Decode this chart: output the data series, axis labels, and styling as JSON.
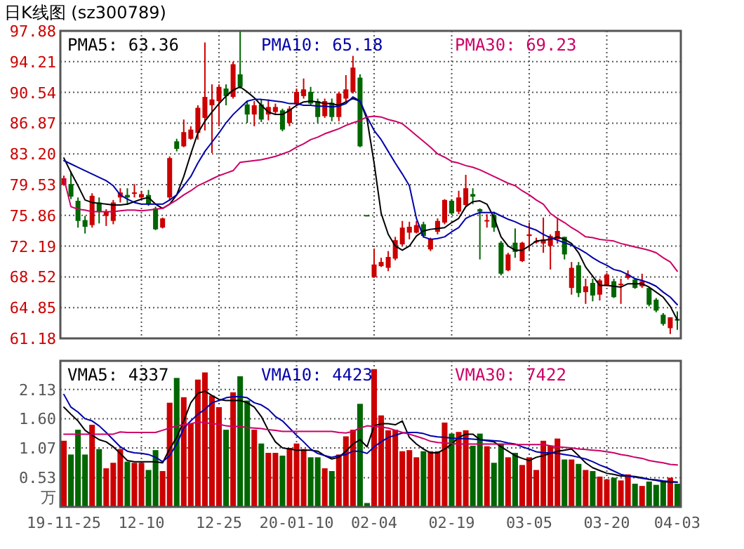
{
  "chart_data": [
    {
      "type": "candlestick",
      "title": "日K线图 (sz300789)",
      "categories": [
        null,
        null,
        null,
        null,
        null,
        null,
        null,
        null,
        null,
        null,
        null,
        null,
        null,
        null,
        null,
        null,
        null,
        null,
        null,
        null,
        null,
        null,
        null,
        null,
        null,
        null,
        null,
        null,
        null,
        null,
        null,
        null,
        null,
        null,
        null,
        null,
        null,
        null,
        null,
        null,
        null,
        null,
        null,
        null,
        null,
        null,
        null,
        null,
        null,
        null,
        null,
        null,
        null,
        null,
        null,
        null,
        null,
        null,
        null,
        null,
        null,
        null,
        null,
        null,
        null,
        null,
        null,
        null,
        null,
        null,
        null,
        null,
        null,
        null,
        null,
        null,
        null,
        null,
        null,
        null,
        null,
        null,
        null,
        null,
        null,
        null,
        null,
        null
      ],
      "ohlc": [
        [
          79.5,
          80.6,
          79.4,
          80.3
        ],
        [
          79.6,
          81.1,
          77.8,
          78.1
        ],
        [
          77.6,
          78.0,
          74.4,
          75.2
        ],
        [
          75.3,
          75.8,
          73.7,
          74.5
        ],
        [
          74.7,
          78.5,
          74.4,
          78.2
        ],
        [
          77.4,
          78.0,
          74.9,
          76.3
        ],
        [
          75.8,
          76.6,
          74.6,
          76.3
        ],
        [
          75.2,
          77.7,
          74.8,
          77.4
        ],
        [
          78.0,
          79.1,
          77.4,
          78.6
        ],
        [
          78.3,
          79.1,
          77.1,
          78.0
        ],
        [
          78.5,
          79.6,
          78.0,
          78.6
        ],
        [
          78.0,
          78.8,
          77.7,
          78.4
        ],
        [
          78.3,
          78.9,
          77.0,
          77.2
        ],
        [
          76.7,
          76.9,
          74.1,
          74.2
        ],
        [
          74.4,
          75.6,
          74.3,
          75.5
        ],
        [
          78.0,
          82.9,
          77.6,
          82.7
        ],
        [
          84.7,
          85.0,
          83.5,
          83.8
        ],
        [
          84.1,
          87.3,
          84.0,
          85.8
        ],
        [
          85.0,
          86.5,
          84.9,
          86.1
        ],
        [
          85.7,
          89.0,
          84.9,
          88.7
        ],
        [
          87.5,
          96.5,
          86.0,
          90.0
        ],
        [
          89.0,
          91.5,
          83.3,
          89.7
        ],
        [
          89.5,
          91.5,
          86.5,
          91.2
        ],
        [
          91.0,
          91.5,
          89.0,
          90.1
        ],
        [
          90.0,
          94.2,
          89.8,
          93.9
        ],
        [
          92.7,
          97.88,
          91.0,
          91.2
        ],
        [
          89.1,
          89.5,
          86.9,
          87.9
        ],
        [
          87.9,
          89.5,
          86.5,
          89.0
        ],
        [
          89.1,
          89.7,
          87.0,
          87.3
        ],
        [
          87.9,
          89.7,
          87.2,
          88.8
        ],
        [
          88.2,
          89.2,
          87.9,
          88.8
        ],
        [
          88.4,
          88.6,
          85.9,
          86.1
        ],
        [
          86.9,
          88.9,
          86.5,
          88.6
        ],
        [
          89.1,
          91.0,
          88.9,
          90.6
        ],
        [
          90.1,
          92.2,
          89.8,
          90.9
        ],
        [
          90.6,
          91.2,
          89.0,
          89.2
        ],
        [
          89.5,
          89.8,
          86.9,
          87.6
        ],
        [
          87.7,
          89.8,
          87.5,
          89.5
        ],
        [
          89.3,
          89.8,
          87.1,
          87.6
        ],
        [
          87.6,
          90.6,
          87.1,
          90.4
        ],
        [
          89.8,
          92.6,
          89.5,
          90.9
        ],
        [
          90.6,
          94.9,
          90.4,
          93.5
        ],
        [
          92.3,
          92.7,
          84.0,
          84.1
        ],
        [
          75.9,
          75.9,
          75.9,
          75.9
        ],
        [
          68.5,
          71.9,
          68.4,
          70.0
        ],
        [
          69.8,
          70.8,
          69.7,
          70.3
        ],
        [
          69.6,
          71.6,
          69.2,
          70.9
        ],
        [
          70.7,
          73.3,
          70.5,
          72.9
        ],
        [
          72.4,
          75.2,
          72.2,
          74.4
        ],
        [
          73.8,
          75.1,
          73.0,
          74.5
        ],
        [
          73.8,
          75.2,
          73.7,
          74.7
        ],
        [
          74.8,
          75.1,
          73.2,
          73.4
        ],
        [
          71.8,
          73.2,
          71.6,
          73.0
        ],
        [
          73.9,
          75.5,
          73.6,
          75.2
        ],
        [
          75.0,
          77.8,
          74.8,
          77.7
        ],
        [
          77.6,
          77.8,
          75.9,
          76.1
        ],
        [
          76.3,
          78.8,
          76.0,
          78.0
        ],
        [
          77.1,
          80.7,
          77.0,
          79.1
        ],
        [
          78.4,
          79.1,
          77.2,
          78.1
        ],
        [
          76.6,
          76.7,
          70.6,
          76.3
        ],
        [
          75.2,
          76.0,
          74.4,
          75.3
        ],
        [
          75.9,
          76.3,
          73.9,
          74.4
        ],
        [
          72.6,
          72.8,
          68.7,
          68.9
        ],
        [
          69.3,
          71.4,
          69.2,
          71.2
        ],
        [
          72.6,
          74.3,
          70.8,
          71.5
        ],
        [
          70.4,
          72.7,
          70.3,
          72.6
        ],
        [
          73.4,
          75.0,
          71.7,
          73.6
        ],
        [
          72.7,
          73.2,
          72.5,
          72.8
        ],
        [
          72.5,
          75.6,
          71.4,
          73.0
        ],
        [
          72.2,
          73.6,
          69.4,
          73.4
        ],
        [
          73.0,
          75.6,
          72.5,
          74.0
        ],
        [
          73.3,
          73.3,
          70.6,
          71.2
        ],
        [
          67.2,
          70.3,
          66.4,
          69.6
        ],
        [
          69.9,
          70.3,
          66.1,
          66.6
        ],
        [
          66.7,
          68.3,
          65.3,
          67.4
        ],
        [
          67.8,
          68.3,
          65.6,
          66.3
        ],
        [
          66.4,
          68.3,
          65.7,
          68.1
        ],
        [
          67.5,
          69.0,
          67.4,
          68.8
        ],
        [
          68.0,
          68.3,
          66.0,
          66.1
        ],
        [
          67.6,
          68.3,
          65.3,
          67.7
        ],
        [
          68.4,
          69.3,
          68.2,
          68.8
        ],
        [
          68.2,
          68.4,
          67.1,
          67.2
        ],
        [
          67.4,
          68.9,
          67.2,
          68.0
        ],
        [
          67.2,
          67.3,
          65.0,
          65.2
        ],
        [
          65.8,
          66.0,
          64.3,
          64.5
        ],
        [
          64.0,
          64.2,
          62.7,
          62.9
        ],
        [
          62.4,
          63.7,
          61.7,
          63.7
        ],
        [
          63.5,
          64.4,
          62.2,
          63.3
        ]
      ],
      "colors": [
        "#cc0000",
        "#006600",
        "#006600",
        "#006600",
        "#cc0000",
        "#006600",
        "#cc0000",
        "#cc0000",
        "#cc0000",
        "#006600",
        "#cc0000",
        "#cc0000",
        "#006600",
        "#006600",
        "#cc0000",
        "#cc0000",
        "#006600",
        "#cc0000",
        "#cc0000",
        "#cc0000",
        "#cc0000",
        "#cc0000",
        "#cc0000",
        "#006600",
        "#cc0000",
        "#006600",
        "#006600",
        "#cc0000",
        "#006600",
        "#cc0000",
        "#cc0000",
        "#006600",
        "#cc0000",
        "#cc0000",
        "#cc0000",
        "#006600",
        "#006600",
        "#cc0000",
        "#006600",
        "#cc0000",
        "#cc0000",
        "#cc0000",
        "#006600",
        "#006600",
        "#cc0000",
        "#cc0000",
        "#cc0000",
        "#cc0000",
        "#cc0000",
        "#cc0000",
        "#cc0000",
        "#006600",
        "#cc0000",
        "#cc0000",
        "#cc0000",
        "#006600",
        "#cc0000",
        "#cc0000",
        "#006600",
        "#006600",
        "#cc0000",
        "#006600",
        "#006600",
        "#cc0000",
        "#006600",
        "#cc0000",
        "#cc0000",
        "#cc0000",
        "#cc0000",
        "#cc0000",
        "#cc0000",
        "#006600",
        "#cc0000",
        "#006600",
        "#cc0000",
        "#006600",
        "#cc0000",
        "#cc0000",
        "#006600",
        "#cc0000",
        "#cc0000",
        "#006600",
        "#cc0000",
        "#006600",
        "#006600",
        "#006600",
        "#cc0000",
        "#006600"
      ],
      "series": [
        {
          "name": "PMA5: 63.36",
          "type": "line",
          "color": "#000000",
          "values": [
            82.7,
            81.0,
            79.4,
            77.7,
            77.4,
            77.3,
            77.2,
            77.1,
            77.1,
            77.2,
            77.5,
            77.8,
            78.0,
            77.2,
            76.7,
            77.2,
            78.3,
            80.5,
            83.2,
            85.7,
            87.1,
            88.2,
            89.2,
            90.1,
            90.8,
            91.2,
            90.6,
            89.9,
            89.0,
            88.2,
            87.9,
            87.9,
            88.4,
            89.0,
            89.4,
            89.5,
            89.4,
            89.2,
            89.2,
            89.0,
            89.4,
            89.8,
            89.5,
            87.3,
            82.1,
            76.1,
            73.6,
            72.2,
            71.7,
            72.2,
            73.4,
            74.0,
            74.2,
            74.3,
            74.4,
            75.0,
            75.5,
            76.9,
            77.5,
            77.6,
            77.2,
            75.6,
            73.3,
            72.2,
            71.7,
            71.7,
            72.2,
            72.8,
            72.9,
            73.0,
            73.3,
            73.0,
            72.5,
            71.4,
            69.7,
            68.6,
            67.5,
            67.5,
            67.4,
            67.3,
            67.7,
            67.7,
            67.7,
            67.3,
            66.7,
            66.1,
            65.0,
            63.4
          ]
        },
        {
          "name": "PMA10: 65.18",
          "type": "line",
          "color": "#0000aa",
          "values": [
            82.4,
            82.0,
            81.6,
            81.2,
            80.8,
            80.4,
            80.0,
            79.4,
            78.3,
            77.8,
            77.4,
            77.2,
            77.2,
            77.2,
            77.2,
            77.7,
            78.3,
            79.4,
            80.5,
            82.1,
            83.5,
            84.6,
            85.7,
            86.9,
            87.9,
            88.7,
            89.5,
            89.7,
            89.7,
            89.6,
            89.5,
            89.4,
            89.2,
            89.2,
            89.0,
            89.0,
            88.9,
            88.9,
            88.8,
            88.9,
            89.2,
            90.0,
            89.5,
            87.6,
            86.0,
            84.9,
            83.5,
            82.1,
            80.8,
            79.4,
            75.5,
            73.3,
            73.0,
            73.1,
            73.3,
            73.9,
            74.4,
            75.5,
            75.9,
            76.2,
            76.2,
            76.2,
            75.8,
            75.4,
            75.1,
            74.7,
            74.4,
            74.1,
            73.6,
            73.2,
            72.9,
            72.6,
            72.3,
            71.9,
            71.4,
            70.8,
            70.3,
            69.9,
            69.4,
            69.2,
            68.8,
            68.3,
            68.1,
            67.8,
            67.4,
            66.7,
            66.1,
            65.2
          ]
        },
        {
          "name": "PMA30: 69.23",
          "type": "line",
          "color": "#cc0066",
          "values": [
            80.3,
            76.9,
            76.6,
            76.5,
            76.3,
            76.3,
            76.3,
            76.3,
            76.4,
            76.5,
            76.5,
            76.4,
            76.5,
            76.6,
            76.7,
            77.2,
            77.7,
            78.3,
            78.8,
            79.4,
            79.8,
            80.2,
            80.6,
            80.9,
            81.2,
            82.2,
            82.3,
            82.4,
            82.5,
            82.7,
            82.9,
            83.2,
            83.5,
            84.0,
            84.4,
            84.9,
            85.2,
            85.6,
            85.9,
            86.2,
            86.6,
            86.9,
            87.2,
            87.6,
            87.7,
            87.6,
            87.3,
            87.1,
            86.8,
            86.1,
            85.4,
            84.7,
            84.0,
            83.2,
            82.8,
            82.3,
            82.1,
            81.8,
            81.6,
            81.3,
            80.9,
            80.5,
            80.1,
            79.7,
            79.4,
            78.8,
            78.3,
            77.7,
            77.2,
            76.1,
            75.5,
            75.0,
            74.4,
            73.9,
            73.3,
            73.2,
            73.0,
            72.9,
            72.8,
            72.5,
            72.3,
            72.1,
            71.9,
            71.7,
            71.4,
            70.8,
            70.3,
            69.2
          ]
        }
      ],
      "ylim": [
        61.18,
        97.88
      ],
      "yticks": [
        61.18,
        64.85,
        68.52,
        72.19,
        75.86,
        79.53,
        {
          "value": 83.2,
          "label": "83.20"
        },
        86.87,
        90.54,
        94.21,
        97.88
      ],
      "grid": true,
      "legend": "top left",
      "tick_labels": "y"
    },
    {
      "type": "bar",
      "ylabel": "万",
      "categories": [
        "19-11-25",
        null,
        null,
        null,
        null,
        null,
        null,
        null,
        null,
        null,
        null,
        "12-10",
        null,
        null,
        null,
        null,
        null,
        null,
        null,
        null,
        null,
        null,
        "12-25",
        null,
        null,
        null,
        null,
        null,
        null,
        null,
        null,
        null,
        null,
        "20-01-10",
        null,
        null,
        null,
        null,
        null,
        null,
        null,
        null,
        null,
        null,
        "02-04",
        null,
        null,
        null,
        null,
        null,
        null,
        null,
        null,
        null,
        null,
        "02-19",
        null,
        null,
        null,
        null,
        null,
        null,
        null,
        null,
        null,
        null,
        "03-05",
        null,
        null,
        null,
        null,
        null,
        null,
        null,
        null,
        null,
        null,
        "03-20",
        null,
        null,
        null,
        null,
        null,
        null,
        null,
        null,
        null,
        "04-03"
      ],
      "series": [
        {
          "type": "bar",
          "values": [
            1.2,
            0.95,
            1.4,
            0.95,
            1.49,
            1.05,
            0.7,
            0.8,
            1.05,
            0.82,
            0.8,
            0.8,
            0.67,
            1.03,
            0.65,
            1.89,
            2.34,
            1.99,
            1.51,
            2.31,
            2.44,
            2.02,
            1.81,
            1.4,
            2.08,
            2.37,
            1.93,
            1.4,
            1.15,
            0.98,
            0.98,
            0.93,
            1.07,
            1.15,
            1.05,
            0.9,
            0.9,
            0.7,
            0.65,
            0.95,
            1.28,
            1.4,
            1.87,
            0.07,
            2.5,
            1.66,
            1.39,
            1.4,
            1.01,
            1.03,
            0.9,
            1.01,
            1.01,
            1.01,
            1.53,
            1.33,
            1.36,
            1.39,
            1.11,
            1.33,
            1.1,
            0.8,
            1.14,
            0.9,
            0.98,
            0.76,
            0.9,
            0.67,
            1.2,
            1.11,
            1.24,
            0.86,
            0.86,
            0.78,
            0.67,
            0.65,
            0.55,
            0.5,
            0.53,
            0.48,
            0.59,
            0.42,
            0.38,
            0.46,
            0.4,
            0.46,
            0.53,
            0.42
          ],
          "colors": [
            "#cc0000",
            "#006600",
            "#006600",
            "#006600",
            "#cc0000",
            "#006600",
            "#cc0000",
            "#cc0000",
            "#cc0000",
            "#006600",
            "#cc0000",
            "#cc0000",
            "#006600",
            "#006600",
            "#cc0000",
            "#cc0000",
            "#006600",
            "#cc0000",
            "#cc0000",
            "#cc0000",
            "#cc0000",
            "#cc0000",
            "#cc0000",
            "#006600",
            "#cc0000",
            "#006600",
            "#006600",
            "#cc0000",
            "#006600",
            "#cc0000",
            "#cc0000",
            "#006600",
            "#cc0000",
            "#cc0000",
            "#cc0000",
            "#006600",
            "#006600",
            "#cc0000",
            "#006600",
            "#cc0000",
            "#cc0000",
            "#cc0000",
            "#006600",
            "#006600",
            "#cc0000",
            "#cc0000",
            "#cc0000",
            "#cc0000",
            "#cc0000",
            "#cc0000",
            "#cc0000",
            "#006600",
            "#cc0000",
            "#cc0000",
            "#cc0000",
            "#006600",
            "#cc0000",
            "#cc0000",
            "#006600",
            "#006600",
            "#cc0000",
            "#006600",
            "#006600",
            "#cc0000",
            "#006600",
            "#cc0000",
            "#cc0000",
            "#cc0000",
            "#cc0000",
            "#cc0000",
            "#cc0000",
            "#006600",
            "#cc0000",
            "#006600",
            "#cc0000",
            "#006600",
            "#cc0000",
            "#cc0000",
            "#006600",
            "#cc0000",
            "#cc0000",
            "#006600",
            "#cc0000",
            "#006600",
            "#006600",
            "#006600",
            "#cc0000",
            "#006600"
          ]
        },
        {
          "name": "VMA5: 4337",
          "type": "line",
          "color": "#000000",
          "values": [
            1.81,
            1.68,
            1.56,
            1.39,
            1.3,
            1.22,
            1.18,
            1.09,
            0.97,
            0.84,
            0.82,
            0.82,
            0.82,
            0.82,
            0.8,
            1.05,
            1.26,
            1.56,
            1.89,
            2.06,
            2.1,
            2.02,
            1.95,
            1.93,
            1.93,
            1.93,
            1.89,
            1.81,
            1.64,
            1.39,
            1.18,
            1.07,
            1.05,
            1.03,
            1.03,
            1.03,
            1.01,
            0.93,
            0.87,
            0.9,
            1.01,
            1.14,
            1.22,
            1.09,
            1.47,
            1.51,
            1.51,
            1.49,
            1.56,
            1.26,
            1.14,
            1.05,
            0.98,
            0.98,
            1.05,
            1.14,
            1.26,
            1.32,
            1.32,
            1.22,
            1.2,
            1.18,
            1.09,
            1.01,
            0.93,
            0.88,
            0.84,
            0.9,
            0.93,
            0.97,
            1.01,
            1.03,
            1.05,
            0.93,
            0.8,
            0.71,
            0.66,
            0.61,
            0.59,
            0.56,
            0.56,
            0.55,
            0.53,
            0.5,
            0.48,
            0.46,
            0.45,
            0.45
          ]
        },
        {
          "name": "VMA10: 4423",
          "type": "line",
          "color": "#0000aa",
          "values": [
            2.04,
            1.81,
            1.72,
            1.6,
            1.56,
            1.47,
            1.35,
            1.22,
            1.09,
            1.01,
            0.98,
            0.97,
            0.95,
            0.9,
            0.82,
            0.93,
            1.14,
            1.43,
            1.56,
            1.68,
            1.77,
            1.89,
            1.93,
            1.98,
            2.0,
            2.0,
            1.98,
            1.89,
            1.85,
            1.77,
            1.64,
            1.56,
            1.43,
            1.3,
            1.18,
            1.05,
            0.97,
            0.93,
            0.9,
            0.93,
            0.95,
            1.01,
            1.01,
            0.97,
            1.09,
            1.18,
            1.26,
            1.3,
            1.34,
            1.35,
            1.35,
            1.33,
            1.29,
            1.27,
            1.26,
            1.25,
            1.24,
            1.24,
            1.23,
            1.22,
            1.21,
            1.2,
            1.19,
            1.16,
            1.14,
            1.09,
            1.05,
            1.0,
            0.98,
            0.98,
            0.97,
            0.95,
            0.93,
            0.9,
            0.87,
            0.82,
            0.76,
            0.71,
            0.65,
            0.59,
            0.56,
            0.54,
            0.52,
            0.5,
            0.49,
            0.47,
            0.46,
            0.45
          ]
        },
        {
          "name": "VMA30: 7422",
          "type": "line",
          "color": "#cc0066",
          "values": [
            1.32,
            1.32,
            1.32,
            1.32,
            1.32,
            1.32,
            1.32,
            1.32,
            1.36,
            1.35,
            1.35,
            1.35,
            1.35,
            1.35,
            1.39,
            1.43,
            1.47,
            1.49,
            1.51,
            1.54,
            1.53,
            1.51,
            1.5,
            1.47,
            1.46,
            1.46,
            1.44,
            1.43,
            1.42,
            1.4,
            1.39,
            1.37,
            1.37,
            1.37,
            1.37,
            1.37,
            1.37,
            1.37,
            1.37,
            1.35,
            1.34,
            1.37,
            1.43,
            1.47,
            1.46,
            1.45,
            1.43,
            1.39,
            1.35,
            1.32,
            1.28,
            1.24,
            1.19,
            1.17,
            1.16,
            1.15,
            1.14,
            1.14,
            1.14,
            1.14,
            1.14,
            1.14,
            1.14,
            1.14,
            1.13,
            1.13,
            1.13,
            1.13,
            1.13,
            1.11,
            1.09,
            1.08,
            1.07,
            1.05,
            1.04,
            1.03,
            1.02,
            1.0,
            0.98,
            0.95,
            0.93,
            0.9,
            0.88,
            0.84,
            0.82,
            0.8,
            0.77,
            0.76
          ]
        }
      ],
      "ylim": [
        0,
        2.65
      ],
      "yticks": [
        0.53,
        1.07,
        {
          "value": 1.6,
          "label": "1.60"
        },
        2.13
      ],
      "grid": true,
      "legend": "top left"
    }
  ]
}
